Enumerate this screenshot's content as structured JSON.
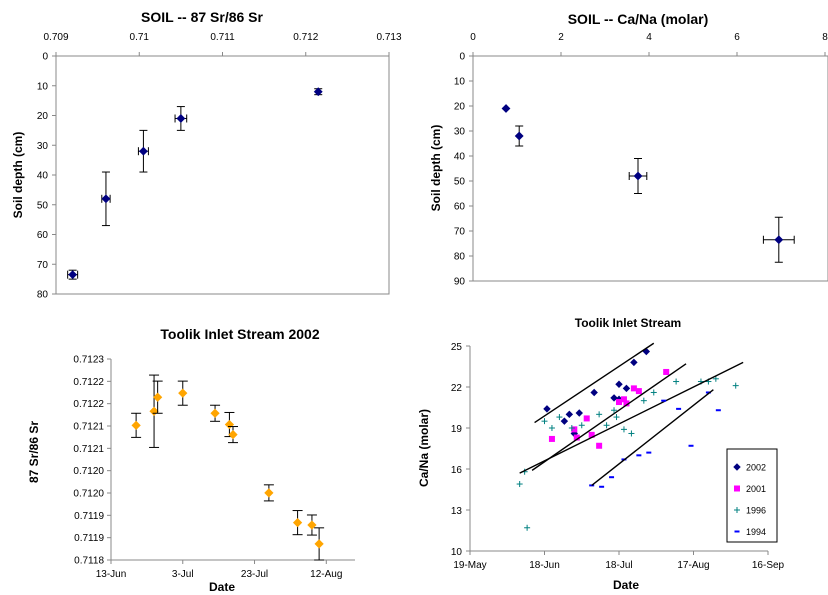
{
  "chart_data": [
    {
      "type": "scatter",
      "title": "SOIL --  87 Sr/86 Sr",
      "xlabel": "",
      "ylabel": "Soil depth (cm)",
      "xlim": [
        0.709,
        0.713
      ],
      "ylim": [
        0,
        80
      ],
      "y_inverted": true,
      "x_axis_position": "top",
      "xticks": [
        "0.709",
        "0.71",
        "0.711",
        "0.712",
        "0.713"
      ],
      "yticks": [
        "0",
        "10",
        "20",
        "30",
        "40",
        "50",
        "60",
        "70",
        "80"
      ],
      "grid": false,
      "marker": "diamond",
      "color": "#000080",
      "series": [
        {
          "x": [
            0.7092,
            0.7096,
            0.71005,
            0.7105,
            0.71215
          ],
          "y": [
            73.5,
            48,
            32,
            21,
            12
          ],
          "yerr": [
            1.5,
            9,
            7,
            4,
            1
          ],
          "xerr": [
            6e-05,
            5e-05,
            6e-05,
            7e-05,
            0
          ]
        }
      ]
    },
    {
      "type": "scatter",
      "title": "SOIL --  Ca/Na (molar)",
      "xlabel": "",
      "ylabel": "Soil depth (cm)",
      "xlim": [
        0,
        8
      ],
      "ylim": [
        0,
        90
      ],
      "y_inverted": true,
      "x_axis_position": "top",
      "xticks": [
        "0",
        "2",
        "4",
        "6",
        "8"
      ],
      "yticks": [
        "0",
        "10",
        "20",
        "30",
        "40",
        "50",
        "60",
        "70",
        "80",
        "90"
      ],
      "grid": false,
      "marker": "diamond",
      "color": "#000080",
      "series": [
        {
          "x": [
            0.75,
            1.05,
            3.75,
            6.95
          ],
          "y": [
            21,
            32,
            48,
            73.5
          ],
          "yerr": [
            0,
            4,
            7,
            9
          ],
          "xerr": [
            0,
            0,
            0.2,
            0.35
          ]
        }
      ]
    },
    {
      "type": "scatter",
      "title": "Toolik Inlet Stream  2002",
      "xlabel": "Date",
      "ylabel": "87 Sr/86 Sr",
      "xlim": [
        "2002-06-13",
        "2002-08-20"
      ],
      "ylim": [
        0.7118,
        0.7123
      ],
      "xticks": [
        "13-Jun",
        "3-Jul",
        "23-Jul",
        "12-Aug"
      ],
      "yticks": [
        "0.7118",
        "0.7119",
        "0.7119",
        "0.7120",
        "0.7120",
        "0.7121",
        "0.7121",
        "0.7122",
        "0.7122",
        "0.7123"
      ],
      "grid": false,
      "marker": "diamond",
      "color": "#FFA500",
      "series": [
        {
          "x": [
            "2002-06-20",
            "2002-06-25",
            "2002-06-26",
            "2002-07-03",
            "2002-07-12",
            "2002-07-16",
            "2002-07-17",
            "2002-07-27",
            "2002-08-04",
            "2002-08-08",
            "2002-08-10"
          ],
          "y": [
            0.712135,
            0.71217,
            0.712205,
            0.712215,
            0.712165,
            0.712137,
            0.712112,
            0.711967,
            0.711893,
            0.711887,
            0.71184
          ],
          "yerr": [
            3e-05,
            9e-05,
            4e-05,
            3e-05,
            2e-05,
            3e-05,
            2e-05,
            2e-05,
            3e-05,
            2.5e-05,
            4e-05
          ]
        }
      ]
    },
    {
      "type": "scatter",
      "title": "Toolik Inlet Stream",
      "xlabel": "Date",
      "ylabel": "Ca/Na (molar)",
      "xlim": [
        "19-May",
        "16-Sep"
      ],
      "ylim": [
        10,
        25
      ],
      "xticks": [
        "19-May",
        "18-Jun",
        "18-Jul",
        "17-Aug",
        "16-Sep"
      ],
      "yticks": [
        "10",
        "13",
        "16",
        "19",
        "22",
        "25"
      ],
      "grid": false,
      "legend": "right",
      "series": [
        {
          "name": "2002",
          "color": "#000080",
          "marker": "diamond",
          "x_days": [
            31,
            38,
            40,
            44,
            50,
            58,
            60,
            63,
            66,
            71,
            60,
            42
          ],
          "y": [
            20.4,
            19.5,
            20.0,
            20.1,
            21.6,
            21.2,
            22.2,
            21.9,
            23.8,
            24.6,
            21.1,
            18.6
          ],
          "trend": [
            [
              26,
              19.4
            ],
            [
              74,
              25.2
            ]
          ]
        },
        {
          "name": "2001",
          "color": "#FF00FF",
          "marker": "square",
          "x_days": [
            33,
            42,
            43,
            47,
            49,
            52,
            60,
            62,
            63,
            66,
            68,
            79
          ],
          "y": [
            18.2,
            18.9,
            18.3,
            19.7,
            18.5,
            17.7,
            20.9,
            21.1,
            20.8,
            21.9,
            21.7,
            23.1
          ],
          "trend": [
            [
              25,
              15.9
            ],
            [
              87,
              23.7
            ]
          ]
        },
        {
          "name": "1996",
          "color": "#008080",
          "marker": "plus",
          "x_days": [
            20,
            22,
            23,
            30,
            33,
            36,
            41,
            45,
            52,
            55,
            58,
            59,
            62,
            65,
            70,
            74,
            83,
            93,
            96,
            99,
            107
          ],
          "y": [
            14.9,
            15.8,
            11.7,
            19.5,
            19.0,
            19.8,
            19.0,
            19.2,
            20.0,
            19.2,
            20.3,
            19.8,
            18.9,
            18.6,
            21.0,
            21.6,
            22.4,
            22.4,
            22.4,
            22.6,
            22.1
          ],
          "trend": [
            [
              20,
              15.7
            ],
            [
              110,
              23.8
            ]
          ]
        },
        {
          "name": "1994",
          "color": "#0000FF",
          "marker": "dash",
          "x_days": [
            49,
            53,
            57,
            62,
            68,
            72,
            78,
            84,
            89,
            96,
            100
          ],
          "y": [
            14.8,
            14.7,
            15.4,
            16.7,
            17.0,
            17.2,
            21.0,
            20.4,
            17.7,
            21.6,
            20.3
          ],
          "trend": [
            [
              49,
              14.8
            ],
            [
              98,
              21.8
            ]
          ]
        }
      ]
    }
  ]
}
